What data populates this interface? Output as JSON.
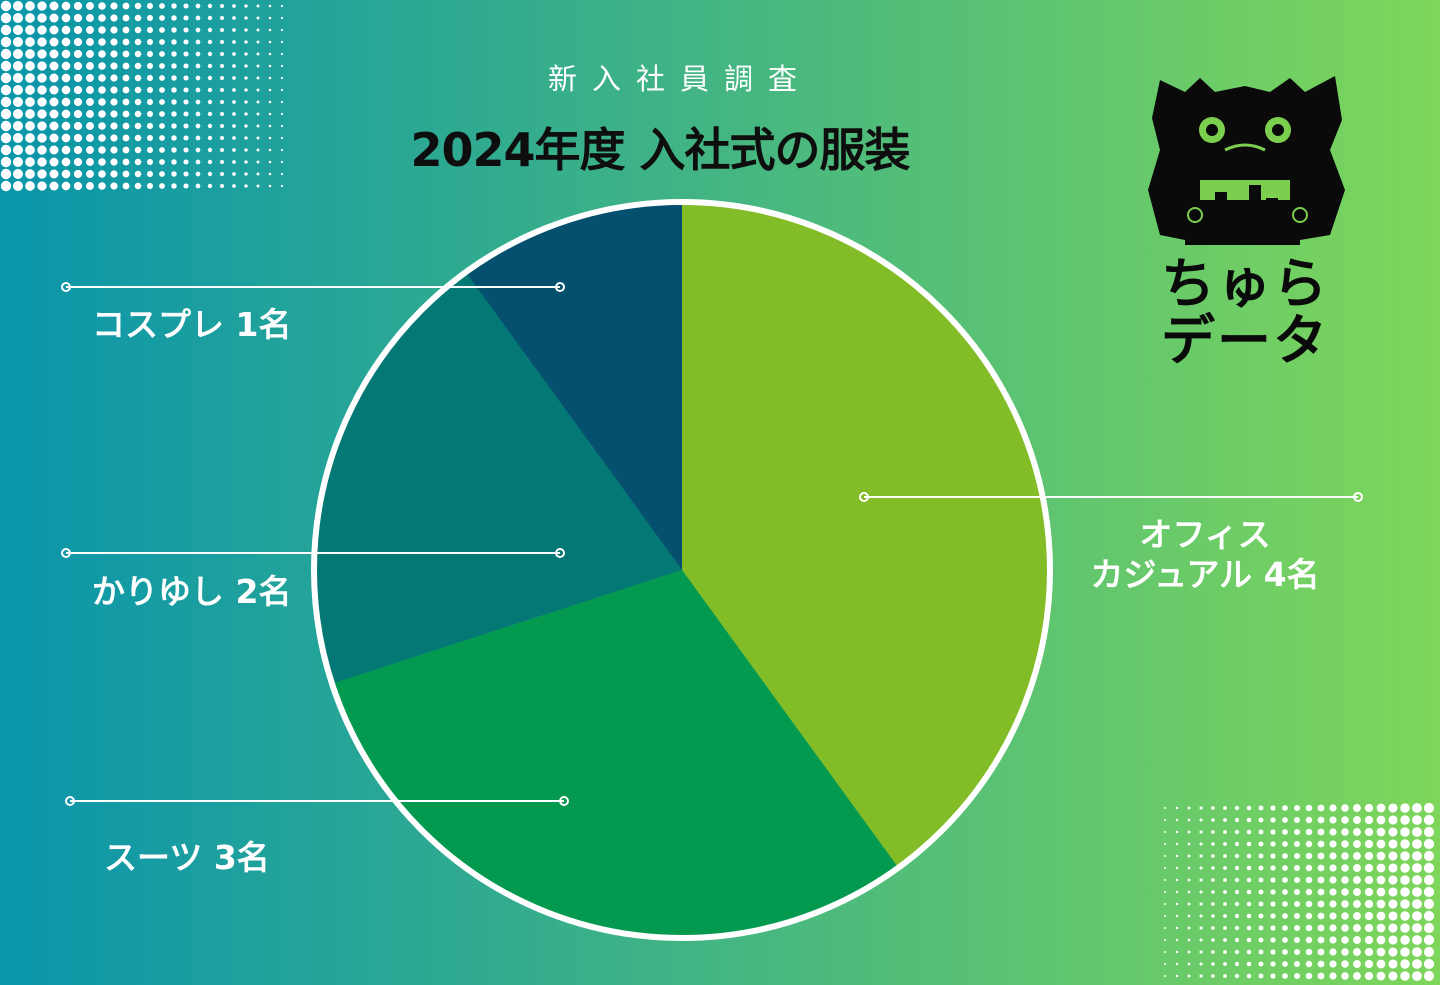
{
  "subtitle": "新入社員調査",
  "title": "2024年度 入社式の服装",
  "logo": {
    "line1": "ちゅら",
    "line2": "データ"
  },
  "colors": {
    "bg_left": "#0a95ab",
    "bg_right": "#7ed65a",
    "office_casual": "#82bc26",
    "suit": "#039a4f",
    "kariyushi": "#037874",
    "cosplay": "#04506e"
  },
  "chart_data": {
    "type": "pie",
    "title": "2024年度 入社式の服装",
    "categories": [
      "オフィスカジュアル",
      "スーツ",
      "かりゆし",
      "コスプレ"
    ],
    "values": [
      4,
      3,
      2,
      1
    ],
    "unit": "名",
    "labels": [
      "オフィス\nカジュアル 4名",
      "スーツ 3名",
      "かりゆし 2名",
      "コスプレ 1名"
    ]
  }
}
